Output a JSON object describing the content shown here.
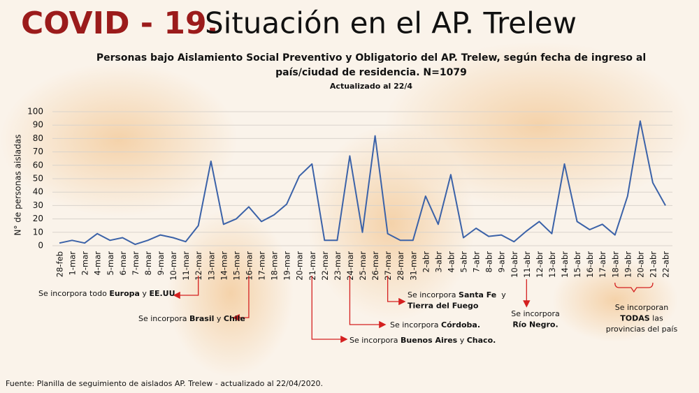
{
  "chart_data": {
    "type": "line",
    "title_highlight": "COVID - 19.",
    "title": "Situación en el AP. Trelew",
    "subtitle": [
      "Personas bajo Aislamiento Social Preventivo y Obligatorio del AP. Trelew, según fecha de ingreso al",
      "país/ciudad de residencia. N=1079"
    ],
    "updated": "Actualizado al 22/4",
    "y_label": "N° de personas aisladas",
    "source": "Fuente: Planilla de seguimiento de aislados AP. Trelew  - actualizado al 22/04/2020.",
    "categories": [
      "28-feb",
      "1-mar",
      "2-mar",
      "4-mar",
      "5-mar",
      "6-mar",
      "7-mar",
      "8-mar",
      "9-mar",
      "10-mar",
      "11-mar",
      "12-mar",
      "13-mar",
      "14-mar",
      "15-mar",
      "16-mar",
      "17-mar",
      "18-mar",
      "19-mar",
      "20-mar",
      "21-mar",
      "22-mar",
      "23-mar",
      "24-mar",
      "25-mar",
      "26-mar",
      "27-mar",
      "28-mar",
      "31-mar",
      "2-abr",
      "3-abr",
      "4-abr",
      "5-abr",
      "7-abr",
      "8-abr",
      "9-abr",
      "10-abr",
      "11-abr",
      "12-abr",
      "13-abr",
      "14-abr",
      "15-abr",
      "16-abr",
      "17-abr",
      "18-abr",
      "19-abr",
      "20-abr",
      "21-abr",
      "22-abr"
    ],
    "values": [
      2,
      4,
      2,
      9,
      4,
      6,
      1,
      4,
      8,
      6,
      3,
      15,
      63,
      16,
      20,
      29,
      18,
      23,
      31,
      52,
      61,
      4,
      4,
      67,
      10,
      82,
      9,
      4,
      4,
      37,
      16,
      53,
      6,
      13,
      7,
      8,
      3,
      11,
      18,
      9,
      61,
      18,
      12,
      16,
      8,
      37,
      93,
      47,
      30
    ],
    "color": "#3b62a8",
    "ylim": [
      0,
      100
    ],
    "yticks": [
      0,
      10,
      20,
      30,
      40,
      50,
      60,
      70,
      80,
      90,
      100
    ],
    "grid": true,
    "annotations": [
      {
        "lines": [
          [
            {
              "text": "Se incorpora todo ",
              "bold": false
            },
            {
              "text": "Europa",
              "bold": true
            },
            {
              "text": " y ",
              "bold": false
            },
            {
              "text": "EE.UU",
              "bold": true
            }
          ]
        ]
      },
      {
        "lines": [
          [
            {
              "text": "Se incorpora ",
              "bold": false
            },
            {
              "text": "Brasil",
              "bold": true
            },
            {
              "text": " y ",
              "bold": false
            },
            {
              "text": "Chile",
              "bold": true
            }
          ]
        ]
      },
      {
        "lines": [
          [
            {
              "text": "Se incorpora ",
              "bold": false
            },
            {
              "text": "Buenos Aires",
              "bold": true
            },
            {
              "text": " y ",
              "bold": false
            },
            {
              "text": "Chaco.",
              "bold": true
            }
          ]
        ]
      },
      {
        "lines": [
          [
            {
              "text": "Se incorpora ",
              "bold": false
            },
            {
              "text": "Córdoba.",
              "bold": true
            }
          ]
        ]
      },
      {
        "lines": [
          [
            {
              "text": "Se incorpora ",
              "bold": false
            },
            {
              "text": "Santa Fe",
              "bold": true
            },
            {
              "text": "  y",
              "bold": false
            }
          ],
          [
            {
              "text": "Tierra del Fuego",
              "bold": true
            }
          ]
        ]
      },
      {
        "lines": [
          [
            {
              "text": "Se incorpora",
              "bold": false
            }
          ],
          [
            {
              "text": "Río Negro.",
              "bold": true
            }
          ]
        ]
      },
      {
        "lines": [
          [
            {
              "text": "Se incorporan",
              "bold": false
            }
          ],
          [
            {
              "text": "TODAS",
              "bold": true
            },
            {
              "text": " las",
              "bold": false
            }
          ],
          [
            {
              "text": "provincias del país",
              "bold": false
            }
          ]
        ]
      }
    ]
  }
}
